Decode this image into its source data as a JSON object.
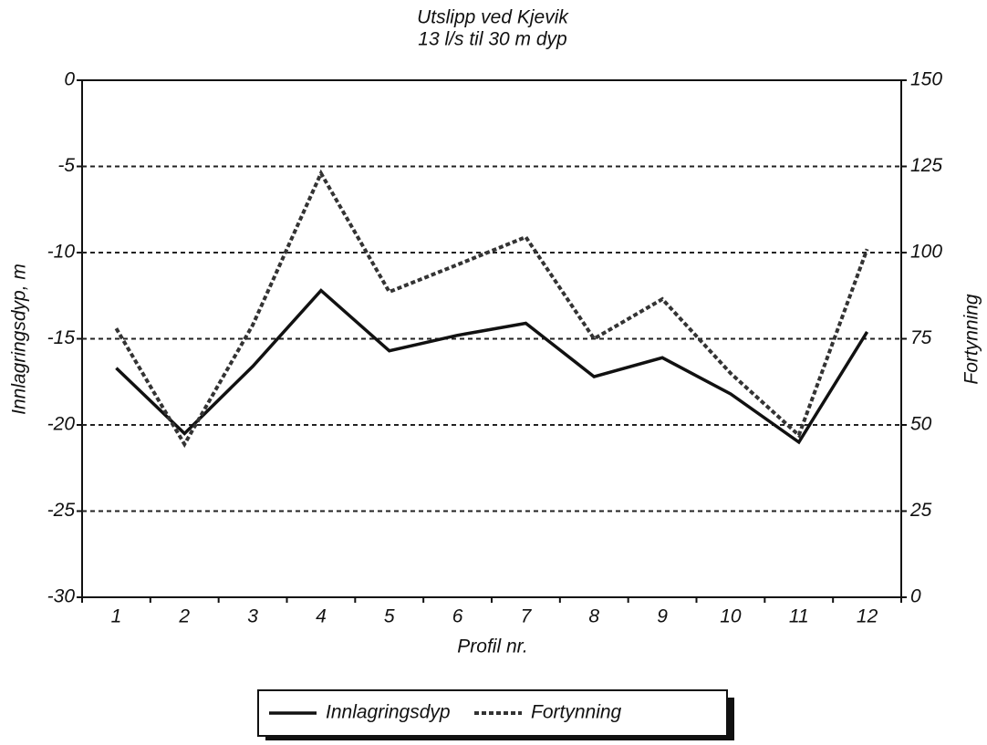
{
  "chart_data": {
    "type": "line",
    "title": "Utslipp ved Kjevik",
    "subtitle": "13 l/s til 30 m dyp",
    "x_label": "Profil nr.",
    "y_label": "Innlagringsdyp, m",
    "y2_label": "Fortynning",
    "categories": [
      "1",
      "2",
      "3",
      "4",
      "5",
      "6",
      "7",
      "8",
      "9",
      "10",
      "11",
      "12"
    ],
    "series": [
      {
        "name": "Innlagringsdyp",
        "color": "#111111",
        "style": "solid",
        "values": [
          -16.7,
          -20.5,
          -16.6,
          -12.2,
          -15.7,
          -14.8,
          -14.1,
          -17.2,
          -16.1,
          -18.2,
          -21,
          -14.6
        ]
      },
      {
        "name": "Fortynning",
        "color": "#333333",
        "style": "dashed",
        "axis": "y2",
        "values": [
          78,
          44.4,
          79,
          123,
          88.6,
          96.5,
          104.5,
          75,
          86.5,
          65,
          47,
          101
        ]
      }
    ],
    "ylim": [
      -30,
      0
    ],
    "yticks": [
      -30,
      -25,
      -20,
      -15,
      -10,
      -5,
      0
    ],
    "y2lim": [
      0,
      150
    ],
    "y2ticks": [
      0,
      25,
      50,
      75,
      100,
      125,
      150
    ],
    "grid": true,
    "legend": "bottom"
  }
}
